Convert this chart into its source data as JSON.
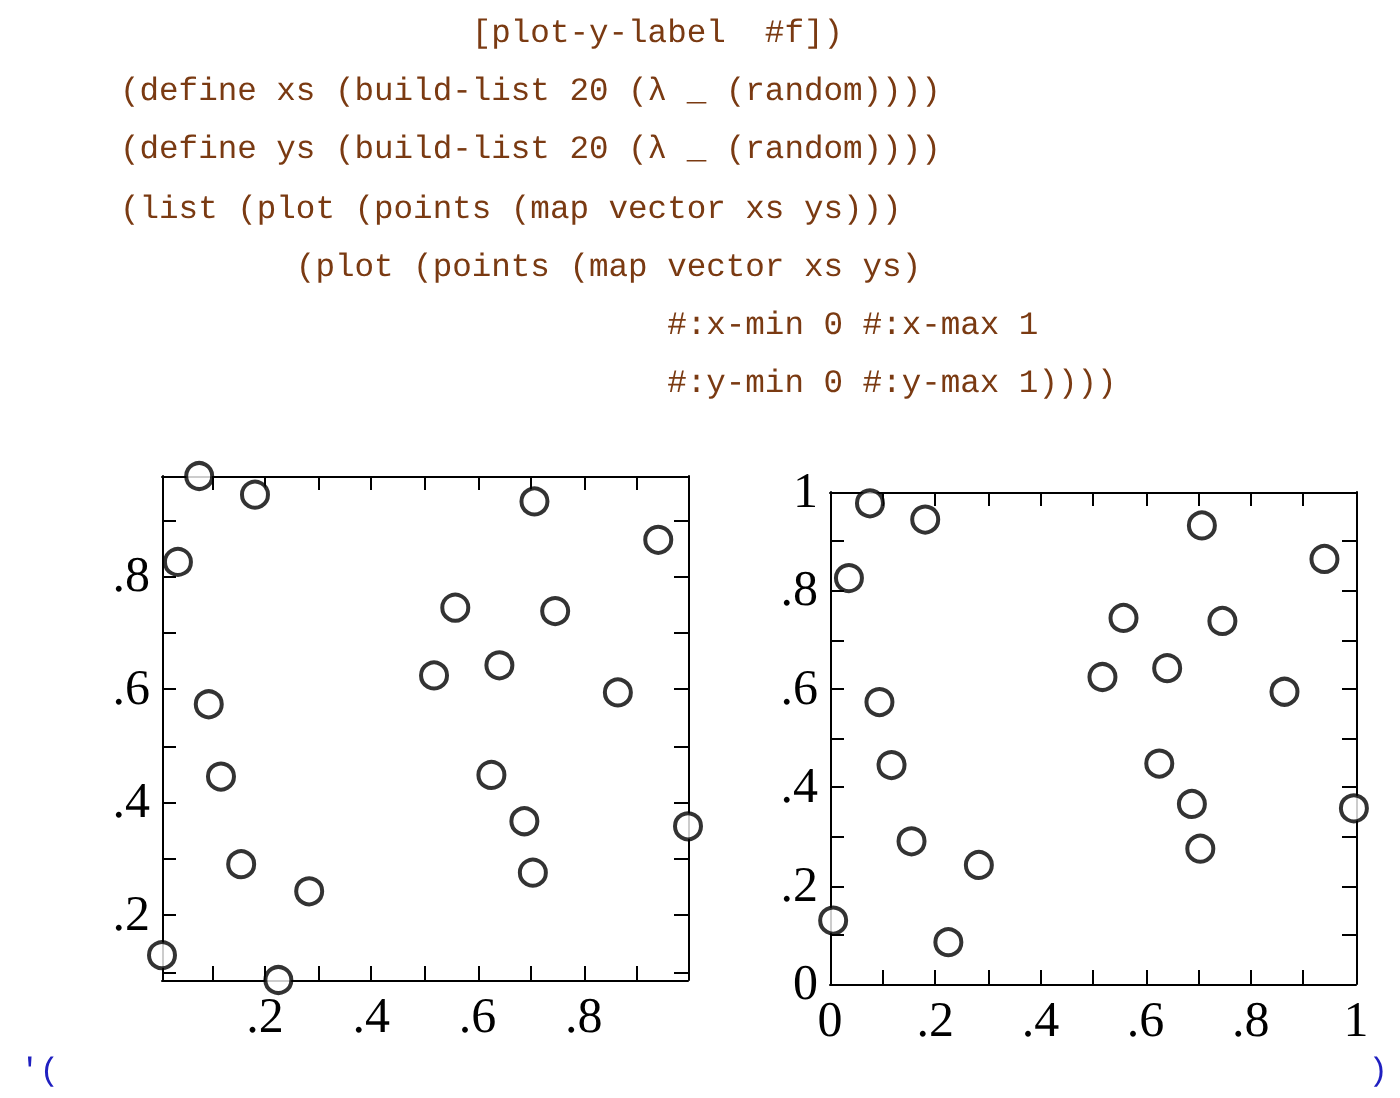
{
  "chart_data": [
    {
      "type": "scatter",
      "marker": "circle",
      "color": "#000000",
      "annotations": [
        "                  [plot-y-label  #f])",
        "(define xs (build-list 20 (λ _ (random))))",
        "(define ys (build-list 20 (λ _ (random))))",
        "(list (plot (points (map vector xs ys)))",
        "         (plot (points (map vector xs ys)",
        "                            #:x-min 0 #:x-max 1",
        "                            #:y-min 0 #:y-max 1))))",
        "'("
      ],
      "x": [
        0.076,
        0.181,
        0.036,
        0.094,
        0.117,
        0.155,
        0.283,
        0.225,
        0.006,
        0.558,
        0.518,
        0.641,
        0.626,
        0.688,
        0.704,
        0.707,
        0.746,
        0.864,
        0.94,
        0.996
      ],
      "values": [
        0.977,
        0.944,
        0.825,
        0.573,
        0.445,
        0.29,
        0.242,
        0.085,
        0.129,
        0.744,
        0.624,
        0.642,
        0.448,
        0.366,
        0.275,
        0.932,
        0.738,
        0.594,
        0.864,
        0.357
      ],
      "xlim": [
        0.006,
        0.996
      ],
      "ylim": [
        0.085,
        0.977
      ],
      "xticks": [
        {
          "value": 0.1,
          "label": null
        },
        {
          "value": 0.2,
          "label": ".2"
        },
        {
          "value": 0.3,
          "label": null
        },
        {
          "value": 0.4,
          "label": ".4"
        },
        {
          "value": 0.5,
          "label": null
        },
        {
          "value": 0.6,
          "label": ".6"
        },
        {
          "value": 0.7,
          "label": null
        },
        {
          "value": 0.8,
          "label": ".8"
        },
        {
          "value": 0.9,
          "label": null
        }
      ],
      "yticks": [
        {
          "value": 0.1,
          "label": null
        },
        {
          "value": 0.2,
          "label": ".2"
        },
        {
          "value": 0.3,
          "label": null
        },
        {
          "value": 0.4,
          "label": ".4"
        },
        {
          "value": 0.5,
          "label": null
        },
        {
          "value": 0.6,
          "label": ".6"
        },
        {
          "value": 0.7,
          "label": null
        },
        {
          "value": 0.8,
          "label": ".8"
        },
        {
          "value": 0.9,
          "label": null
        }
      ]
    },
    {
      "type": "scatter",
      "marker": "circle",
      "color": "#000000",
      "annotations": [
        ")"
      ],
      "x": [
        0.076,
        0.181,
        0.036,
        0.094,
        0.117,
        0.155,
        0.283,
        0.225,
        0.006,
        0.558,
        0.518,
        0.641,
        0.626,
        0.688,
        0.704,
        0.707,
        0.746,
        0.864,
        0.94,
        0.996
      ],
      "values": [
        0.977,
        0.944,
        0.825,
        0.573,
        0.445,
        0.29,
        0.242,
        0.085,
        0.129,
        0.744,
        0.624,
        0.642,
        0.448,
        0.366,
        0.275,
        0.932,
        0.738,
        0.594,
        0.864,
        0.357
      ],
      "xlim": [
        0,
        1
      ],
      "ylim": [
        0,
        1
      ],
      "xticks": [
        0,
        {
          "value": 0.1,
          "label": null
        },
        {
          "value": 0.2,
          "label": ".2"
        },
        {
          "value": 0.3,
          "label": null
        },
        {
          "value": 0.4,
          "label": ".4"
        },
        {
          "value": 0.5,
          "label": null
        },
        {
          "value": 0.6,
          "label": ".6"
        },
        {
          "value": 0.7,
          "label": null
        },
        {
          "value": 0.8,
          "label": ".8"
        },
        {
          "value": 0.9,
          "label": null
        },
        1
      ],
      "yticks": [
        0,
        {
          "value": 0.1,
          "label": null
        },
        {
          "value": 0.2,
          "label": ".2"
        },
        {
          "value": 0.3,
          "label": null
        },
        {
          "value": 0.4,
          "label": ".4"
        },
        {
          "value": 0.5,
          "label": null
        },
        {
          "value": 0.6,
          "label": ".6"
        },
        {
          "value": 0.7,
          "label": null
        },
        {
          "value": 0.8,
          "label": ".8"
        },
        {
          "value": 0.9,
          "label": null
        },
        1
      ]
    }
  ]
}
